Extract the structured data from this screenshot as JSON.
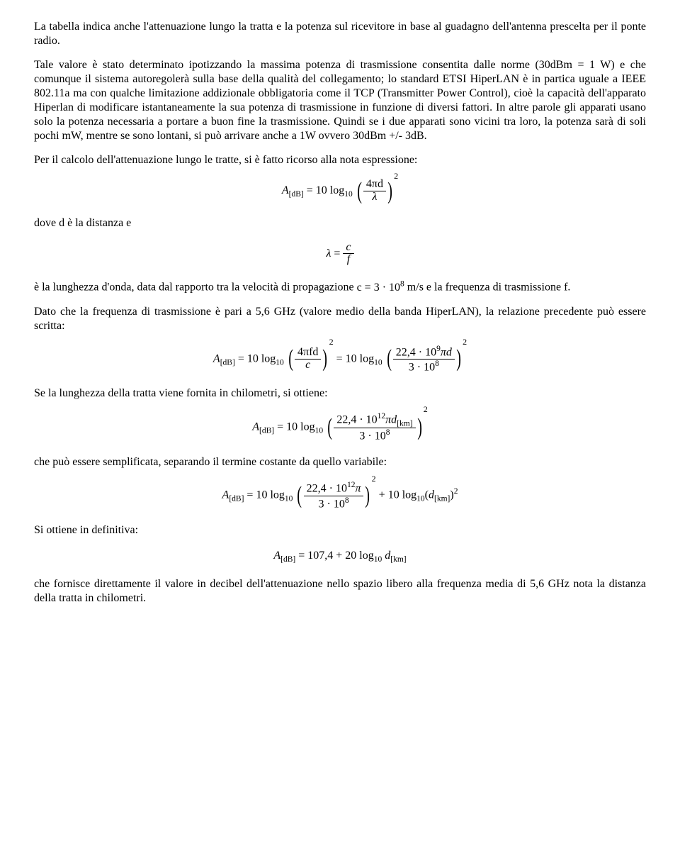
{
  "paragraphs": {
    "p1": "La tabella indica anche l'attenuazione lungo la tratta e la potenza sul ricevitore in base al guadagno dell'antenna prescelta per il ponte radio.",
    "p2": "Tale valore è stato determinato ipotizzando la massima potenza di trasmissione consentita dalle norme (30dBm = 1 W) e che comunque il sistema autoregolerà sulla base della qualità del collegamento; lo standard ETSI HiperLAN è in partica uguale a IEEE 802.11a ma con qualche limitazione addizionale obbligatoria come il TCP (Transmitter Power Control), cioè la capacità dell'apparato Hiperlan di modificare istantaneamente la sua potenza di trasmissione in funzione di diversi fattori. In altre parole gli apparati usano solo la potenza necessaria a portare a buon fine la trasmissione. Quindi se i due apparati sono vicini tra loro, la potenza sarà di soli pochi mW, mentre se sono lontani, si può arrivare anche a 1W ovvero 30dBm +/- 3dB.",
    "p3": "Per il calcolo dell'attenuazione lungo le tratte, si è fatto ricorso alla nota espressione:",
    "p4_prefix": "dove ",
    "p4_suffix": " è la distanza e",
    "p5_prefix": "è la lunghezza d'onda, data dal rapporto tra la velocità di propagazione ",
    "p5_mid": " m/s e la frequenza di trasmissione ",
    "p5_suffix": ".",
    "p6": "Dato che la frequenza di trasmissione è pari a 5,6 GHz (valore medio della banda HiperLAN), la relazione precedente può essere scritta:",
    "p7": "Se la lunghezza della tratta viene fornita in chilometri, si ottiene:",
    "p8": "che può essere semplificata, separando il termine costante da quello variabile:",
    "p9": "Si ottiene in definitiva:",
    "p10": "che fornisce direttamente il valore in decibel dell'attenuazione nello spazio libero alla frequenza media di 5,6 GHz nota la distanza della tratta in chilometri."
  },
  "math": {
    "A": "A",
    "dB": "[dB]",
    "eq": " = ",
    "tenlog": "10 log",
    "ten": "10",
    "fourpi_d": "4πd",
    "lambda": "λ",
    "c": "c",
    "f": "f",
    "d": "d",
    "c_val": "c = 3 · 10",
    "eight": "8",
    "fourpi_fd": "4πfd",
    "num224": "22,4 · 10",
    "nine": "9",
    "pi_d": "πd",
    "den3": "3 · 10",
    "twelve": "12",
    "pi_dkm": "πd",
    "km": "[km]",
    "pi": "π",
    "plus": " + ",
    "dkm": "d",
    "final": "107,4 + 20 log",
    "two": "2"
  }
}
